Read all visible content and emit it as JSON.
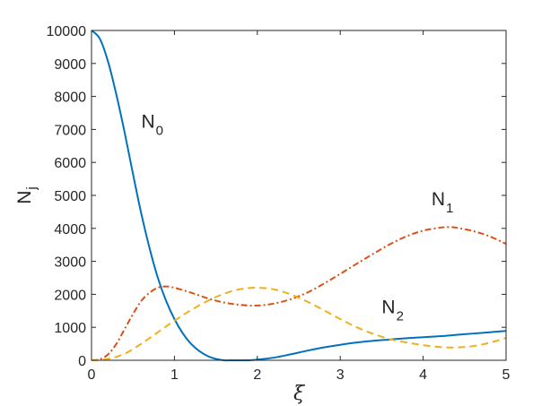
{
  "chart_data": {
    "type": "line",
    "title": "",
    "xlabel": "ξ",
    "ylabel": {
      "main": "N",
      "sub": "j"
    },
    "xlim": [
      0,
      5
    ],
    "ylim": [
      0,
      10000
    ],
    "xticks": [
      0,
      1,
      2,
      3,
      4,
      5
    ],
    "yticks": [
      0,
      1000,
      2000,
      3000,
      4000,
      5000,
      6000,
      7000,
      8000,
      9000,
      10000
    ],
    "grid": false,
    "legend": "none",
    "series": [
      {
        "key": "n0",
        "label": {
          "main": "N",
          "sub": "0"
        },
        "color": "#0072BD",
        "style": "solid",
        "x": [
          0,
          0.1,
          0.2,
          0.3,
          0.4,
          0.5,
          0.6,
          0.7,
          0.8,
          0.9,
          1.0,
          1.1,
          1.2,
          1.3,
          1.4,
          1.5,
          1.6,
          1.7,
          1.8,
          1.9,
          2.0,
          2.2,
          2.4,
          2.6,
          2.8,
          3.0,
          3.2,
          3.4,
          3.6,
          3.8,
          4.0,
          4.2,
          4.4,
          4.6,
          4.8,
          5.0
        ],
        "y": [
          10000,
          9750,
          9050,
          8050,
          6900,
          5650,
          4450,
          3400,
          2500,
          1800,
          1250,
          820,
          500,
          280,
          130,
          40,
          0,
          0,
          0,
          0,
          20,
          80,
          180,
          290,
          390,
          470,
          540,
          590,
          630,
          670,
          700,
          730,
          770,
          810,
          850,
          890
        ]
      },
      {
        "key": "n1",
        "label": {
          "main": "N",
          "sub": "1"
        },
        "color": "#D95319",
        "style": "dashdot",
        "x": [
          0,
          0.1,
          0.2,
          0.3,
          0.4,
          0.5,
          0.6,
          0.7,
          0.8,
          0.9,
          1.0,
          1.2,
          1.4,
          1.6,
          1.8,
          2.0,
          2.2,
          2.4,
          2.6,
          2.8,
          3.0,
          3.2,
          3.4,
          3.6,
          3.8,
          4.0,
          4.2,
          4.3,
          4.4,
          4.6,
          4.8,
          5.0
        ],
        "y": [
          0,
          30,
          180,
          500,
          950,
          1400,
          1800,
          2050,
          2200,
          2240,
          2200,
          2050,
          1880,
          1750,
          1680,
          1660,
          1720,
          1850,
          2050,
          2320,
          2620,
          2930,
          3230,
          3520,
          3760,
          3930,
          4020,
          4040,
          4020,
          3920,
          3760,
          3530
        ]
      },
      {
        "key": "n2",
        "label": {
          "main": "N",
          "sub": "2"
        },
        "color": "#EDB120",
        "style": "dashed",
        "x": [
          0,
          0.2,
          0.4,
          0.6,
          0.8,
          1.0,
          1.2,
          1.4,
          1.6,
          1.8,
          2.0,
          2.2,
          2.4,
          2.6,
          2.8,
          3.0,
          3.2,
          3.4,
          3.6,
          3.8,
          4.0,
          4.2,
          4.4,
          4.6,
          4.8,
          5.0
        ],
        "y": [
          0,
          40,
          200,
          500,
          850,
          1200,
          1520,
          1800,
          2020,
          2160,
          2200,
          2150,
          2000,
          1780,
          1520,
          1250,
          1000,
          800,
          640,
          540,
          460,
          400,
          390,
          430,
          530,
          680
        ]
      }
    ],
    "annotations": [
      {
        "series": "n0",
        "x": 0.6,
        "y": 7050
      },
      {
        "series": "n1",
        "x": 4.1,
        "y": 4700
      },
      {
        "series": "n2",
        "x": 3.5,
        "y": 1430
      }
    ]
  }
}
